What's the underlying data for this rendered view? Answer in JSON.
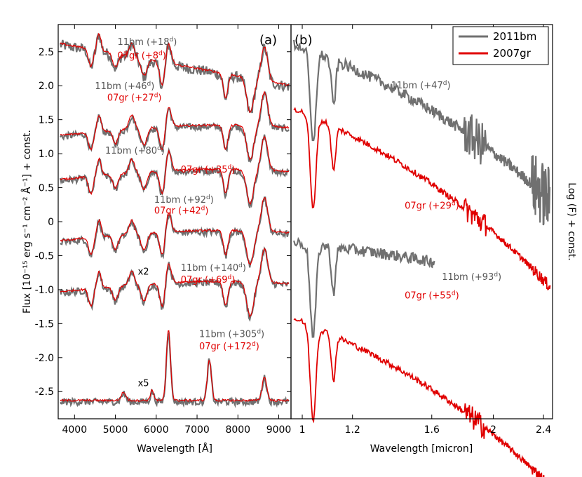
{
  "chart_data": [
    {
      "type": "line",
      "panel_label": "(a)",
      "xlabel": "Wavelength [Å]",
      "ylabel": "Flux [10⁻¹⁵ erg s⁻¹ cm⁻² Å⁻¹] + const.",
      "xlim": [
        3600,
        9300
      ],
      "ylim": [
        -2.9,
        2.9
      ],
      "xticks": [
        4000,
        5000,
        6000,
        7000,
        8000,
        9000
      ],
      "yticks": [
        2.5,
        2.0,
        1.5,
        1.0,
        0.5,
        0,
        -0.5,
        -1.0,
        -1.5,
        -2.0,
        -2.5
      ],
      "ytick_labels": [
        "2.5",
        "2.0",
        "1.5",
        "1.0",
        "0.5",
        "0",
        "-0.5",
        "-1.0",
        "-1.5",
        "-2.0",
        "-2.5"
      ],
      "series": [
        {
          "name": "2011bm",
          "color": "#707070",
          "epochs": [
            "+18d",
            "+46d",
            "+80d",
            "+92d",
            "+140d",
            "+305d"
          ],
          "offsets": [
            2.05,
            1.25,
            0.6,
            -0.3,
            -1.05,
            -2.6
          ]
        },
        {
          "name": "2007gr",
          "color": "#e00000",
          "epochs": [
            "+8d",
            "+27d",
            "+35d",
            "+42d",
            "+69d",
            "+172d"
          ],
          "offsets": [
            2.05,
            1.25,
            0.6,
            -0.3,
            -1.05,
            -2.6
          ]
        }
      ],
      "annotations": [
        {
          "prefix": "11bm",
          "epoch": "(+18",
          "suffix": ")",
          "sup": "d",
          "color": "gray",
          "x": 5050,
          "y": 2.6
        },
        {
          "prefix": "07gr",
          "epoch": "(+8",
          "suffix": ")",
          "sup": "d",
          "color": "red",
          "x": 5050,
          "y": 2.4
        },
        {
          "prefix": "11bm",
          "epoch": "(+46",
          "suffix": ")",
          "sup": "d",
          "color": "gray",
          "x": 4500,
          "y": 1.95
        },
        {
          "prefix": "07gr",
          "epoch": "(+27",
          "suffix": ")",
          "sup": "d",
          "color": "red",
          "x": 4800,
          "y": 1.78
        },
        {
          "prefix": "11bm",
          "epoch": "(+80",
          "suffix": ")",
          "sup": "d",
          "color": "gray",
          "x": 4750,
          "y": 1.0
        },
        {
          "prefix": "07gr",
          "epoch": "(+35",
          "suffix": ")",
          "sup": "d",
          "color": "red",
          "x": 6600,
          "y": 0.72
        },
        {
          "prefix": "11bm",
          "epoch": "(+92",
          "suffix": ")",
          "sup": "d",
          "color": "gray",
          "x": 5950,
          "y": 0.28
        },
        {
          "prefix": "07gr",
          "epoch": "(+42",
          "suffix": ")",
          "sup": "d",
          "color": "red",
          "x": 5950,
          "y": 0.12
        },
        {
          "prefix": "11bm",
          "epoch": "(+140",
          "suffix": ")",
          "sup": "d",
          "color": "gray",
          "x": 6600,
          "y": -0.72
        },
        {
          "prefix": "07gr",
          "epoch": "(+69",
          "suffix": ")",
          "sup": "d",
          "color": "red",
          "x": 6600,
          "y": -0.9
        },
        {
          "prefix": "11bm",
          "epoch": "(+305",
          "suffix": ")",
          "sup": "d",
          "color": "gray",
          "x": 7050,
          "y": -1.7
        },
        {
          "prefix": "07gr",
          "epoch": "(+172",
          "suffix": ")",
          "sup": "d",
          "color": "red",
          "x": 7050,
          "y": -1.88
        }
      ],
      "scale_notes": [
        {
          "text": "x2",
          "x": 5550,
          "y": -0.78
        },
        {
          "text": "x5",
          "x": 5550,
          "y": -2.42
        }
      ]
    },
    {
      "type": "line",
      "panel_label": "(b)",
      "xlabel": "Wavelength [micron]",
      "ylabel": "Log (F) + const.",
      "xlim": [
        0.96,
        2.48
      ],
      "xscale": "log",
      "xticks": [
        1.0,
        1.2,
        1.6,
        2.0,
        2.4
      ],
      "xtick_labels": [
        "1",
        "1.2",
        "1.6",
        "2",
        "2.4"
      ],
      "legend": {
        "position": "top-right",
        "entries": [
          {
            "label": "2011bm",
            "color": "#707070"
          },
          {
            "label": "2007gr",
            "color": "#e00000"
          }
        ]
      },
      "annotations": [
        {
          "prefix": "11bm",
          "epoch": "(+47",
          "suffix": ")",
          "sup": "d",
          "color": "gray",
          "x": 1.38,
          "y": 0.83
        },
        {
          "prefix": "07gr",
          "epoch": "(+29",
          "suffix": ")",
          "sup": "d",
          "color": "red",
          "x": 1.45,
          "y": 0.51
        },
        {
          "prefix": "11bm",
          "epoch": "(+93",
          "suffix": ")",
          "sup": "d",
          "color": "gray",
          "x": 1.66,
          "y": 0.32
        },
        {
          "prefix": "07gr",
          "epoch": "(+55",
          "suffix": ")",
          "sup": "d",
          "color": "red",
          "x": 1.45,
          "y": 0.27
        }
      ]
    }
  ]
}
